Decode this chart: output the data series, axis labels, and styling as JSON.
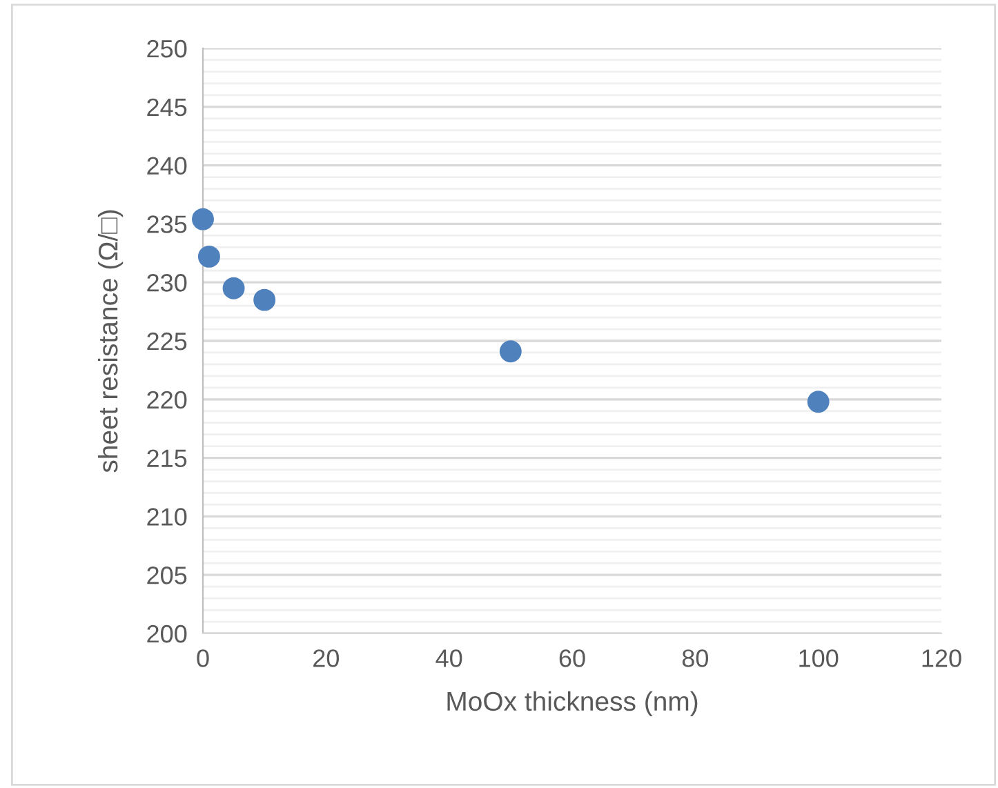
{
  "chart_data": {
    "type": "scatter",
    "xlabel": "MoOx thickness (nm)",
    "ylabel": "sheet resistance (Ω/□)",
    "x": [
      0,
      1,
      5,
      10,
      50,
      100
    ],
    "series": [
      {
        "color": "#4f81bd",
        "values": [
          235.4,
          232.2,
          229.5,
          228.5,
          224.1,
          219.8
        ]
      }
    ],
    "xlim": [
      0,
      120
    ],
    "xticks": [
      0,
      20,
      40,
      60,
      80,
      100,
      120
    ],
    "ylim": [
      200,
      250
    ],
    "yticks": [
      200,
      205,
      210,
      215,
      220,
      225,
      230,
      235,
      240,
      245,
      250
    ],
    "grid": "y",
    "marker": "circle",
    "legend": false
  }
}
